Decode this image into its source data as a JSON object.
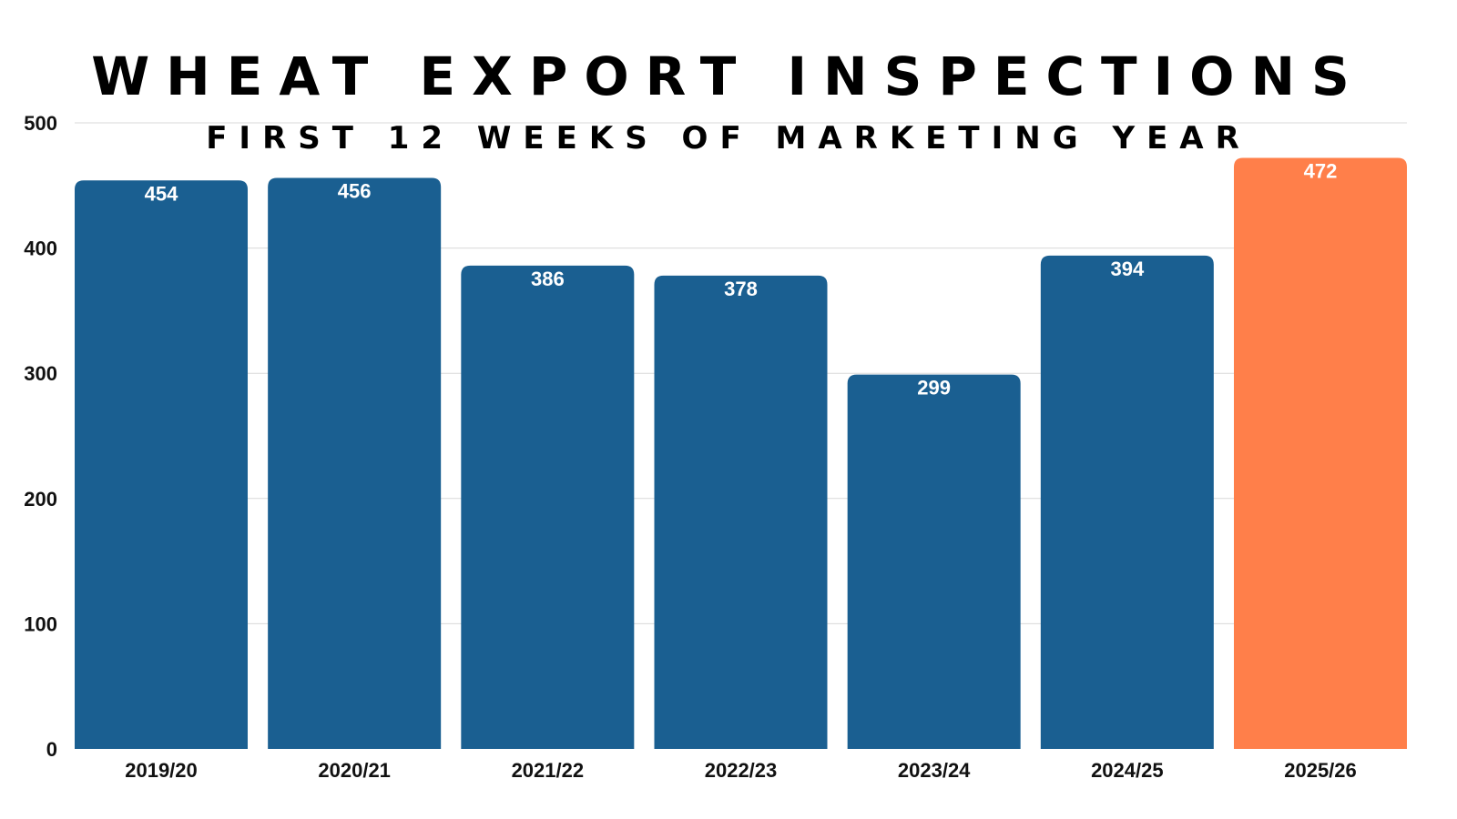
{
  "chart_data": {
    "type": "bar",
    "title": "WHEAT EXPORT INSPECTIONS",
    "subtitle": "FIRST 12 WEEKS OF MARKETING YEAR",
    "categories": [
      "2019/20",
      "2020/21",
      "2021/22",
      "2022/23",
      "2023/24",
      "2024/25",
      "2025/26"
    ],
    "values": [
      454,
      456,
      386,
      378,
      299,
      394,
      472
    ],
    "ylim": [
      0,
      500
    ],
    "yticks": [
      0,
      100,
      200,
      300,
      400,
      500
    ],
    "xlabel": "",
    "ylabel": "",
    "grid": true,
    "legend": "none",
    "colors": {
      "bar": "#1a5f91",
      "highlight": "#ff7f4a",
      "highlight_category": "2025/26",
      "grid": "#d9d9d9"
    }
  }
}
